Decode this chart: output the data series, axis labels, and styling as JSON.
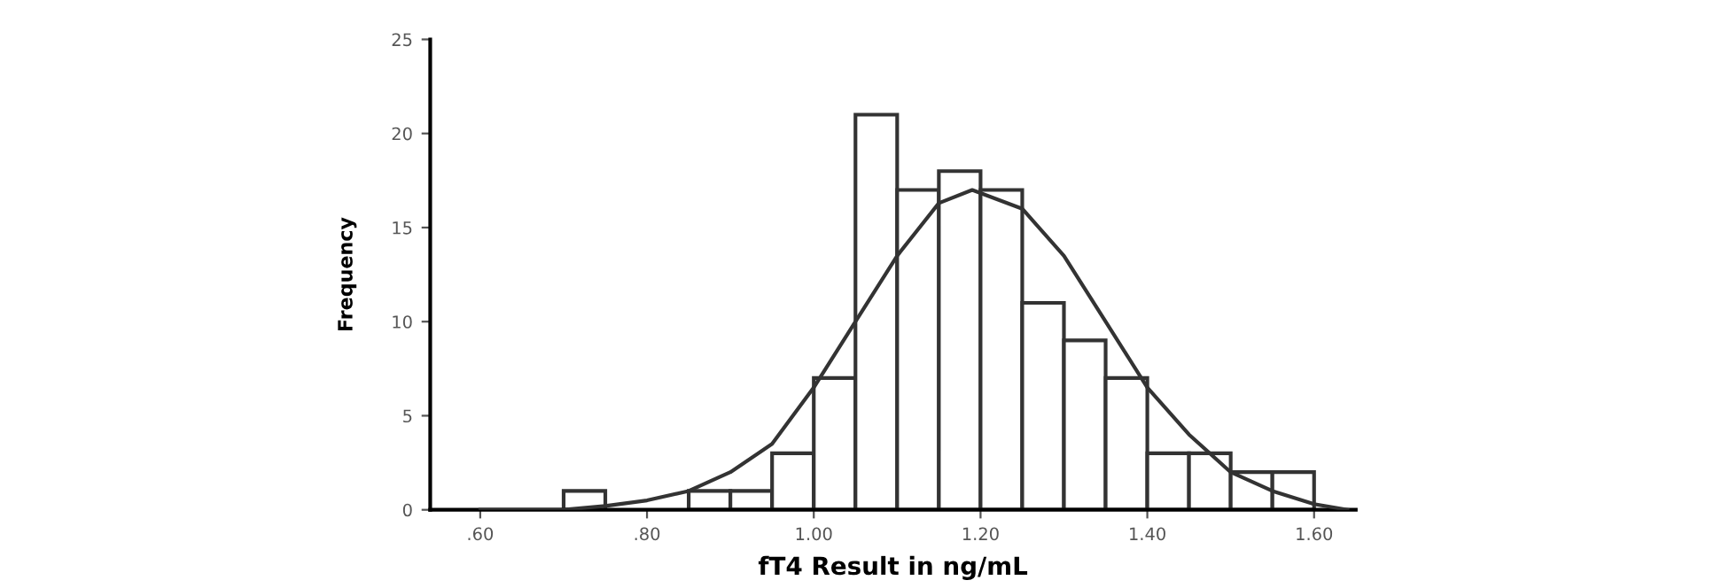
{
  "chart_data": {
    "type": "histogram",
    "xlabel": "fT4 Result in ng/mL",
    "ylabel": "Frequency",
    "bins": [
      0.6,
      0.65,
      0.7,
      0.75,
      0.8,
      0.85,
      0.9,
      0.95,
      1.0,
      1.05,
      1.1,
      1.15,
      1.2,
      1.25,
      1.3,
      1.35,
      1.4,
      1.45,
      1.5,
      1.55,
      1.6
    ],
    "values": [
      0,
      0,
      1,
      0,
      0,
      1,
      1,
      3,
      7,
      21,
      17,
      18,
      17,
      11,
      9,
      7,
      3,
      3,
      2,
      2
    ],
    "color": "#ffffff",
    "series": [
      {
        "type": "line",
        "color": "#333333",
        "x": [
          0.6,
          0.7,
          0.75,
          0.8,
          0.85,
          0.9,
          0.95,
          1.0,
          1.05,
          1.1,
          1.15,
          1.19,
          1.25,
          1.3,
          1.35,
          1.4,
          1.45,
          1.5,
          1.55,
          1.6,
          1.64
        ],
        "values": [
          0,
          0,
          0.2,
          0.5,
          1.0,
          2.0,
          3.5,
          6.5,
          10,
          13.5,
          16.3,
          17,
          16,
          13.5,
          10,
          6.5,
          4,
          2,
          1,
          0.3,
          0
        ]
      }
    ],
    "xlim": [
      0.54,
      1.65
    ],
    "ylim": [
      0,
      25
    ],
    "xticks": [
      {
        "value": 0.6,
        "label": ".60"
      },
      {
        "value": 0.8,
        "label": ".80"
      },
      {
        "value": 1.0,
        "label": "1.00"
      },
      {
        "value": 1.2,
        "label": "1.20"
      },
      {
        "value": 1.4,
        "label": "1.40"
      },
      {
        "value": 1.6,
        "label": "1.60"
      }
    ],
    "yticks": [
      0,
      5,
      10,
      15,
      20,
      25
    ],
    "grid": false,
    "legend": false
  }
}
